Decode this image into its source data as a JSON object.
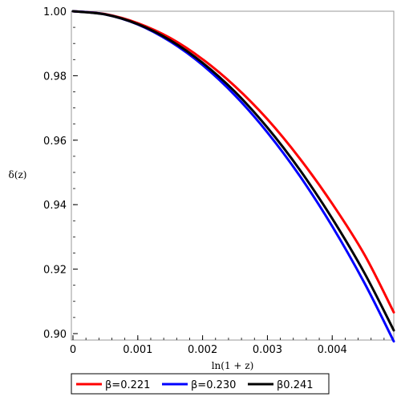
{
  "chart_data": {
    "type": "line",
    "xlabel": "ln(1 + z)",
    "ylabel": "δ(z)",
    "xlim": [
      0,
      0.00495
    ],
    "ylim": [
      0.898,
      1.0
    ],
    "x_ticks": [
      0,
      0.001,
      0.002,
      0.003,
      0.004
    ],
    "x_tick_labels": [
      "0",
      "0.001",
      "0.002",
      "0.003",
      "0.004"
    ],
    "y_ticks": [
      0.9,
      0.92,
      0.94,
      0.96,
      0.98,
      1.0
    ],
    "y_tick_labels": [
      "0.90",
      "0.92",
      "0.94",
      "0.96",
      "0.98",
      "1.00"
    ],
    "grid": false,
    "legend_position": "bottom",
    "x": [
      0,
      0.0005,
      0.001,
      0.0015,
      0.002,
      0.0025,
      0.003,
      0.0035,
      0.004,
      0.0045,
      0.00495
    ],
    "series": [
      {
        "name": "β=0.221",
        "color": "#ff0000",
        "values": [
          1.0,
          0.9991,
          0.9963,
          0.9917,
          0.9851,
          0.9767,
          0.9665,
          0.9543,
          0.9403,
          0.9244,
          0.9066
        ]
      },
      {
        "name": "β=0.230",
        "color": "#0000ff",
        "values": [
          1.0,
          0.999,
          0.9959,
          0.9906,
          0.9833,
          0.9739,
          0.9624,
          0.9489,
          0.9333,
          0.9156,
          0.8976
        ]
      },
      {
        "name": "β0.241",
        "color": "#000000",
        "values": [
          1.0,
          0.999,
          0.996,
          0.991,
          0.984,
          0.975,
          0.9639,
          0.9508,
          0.9357,
          0.9187,
          0.901
        ]
      }
    ]
  }
}
